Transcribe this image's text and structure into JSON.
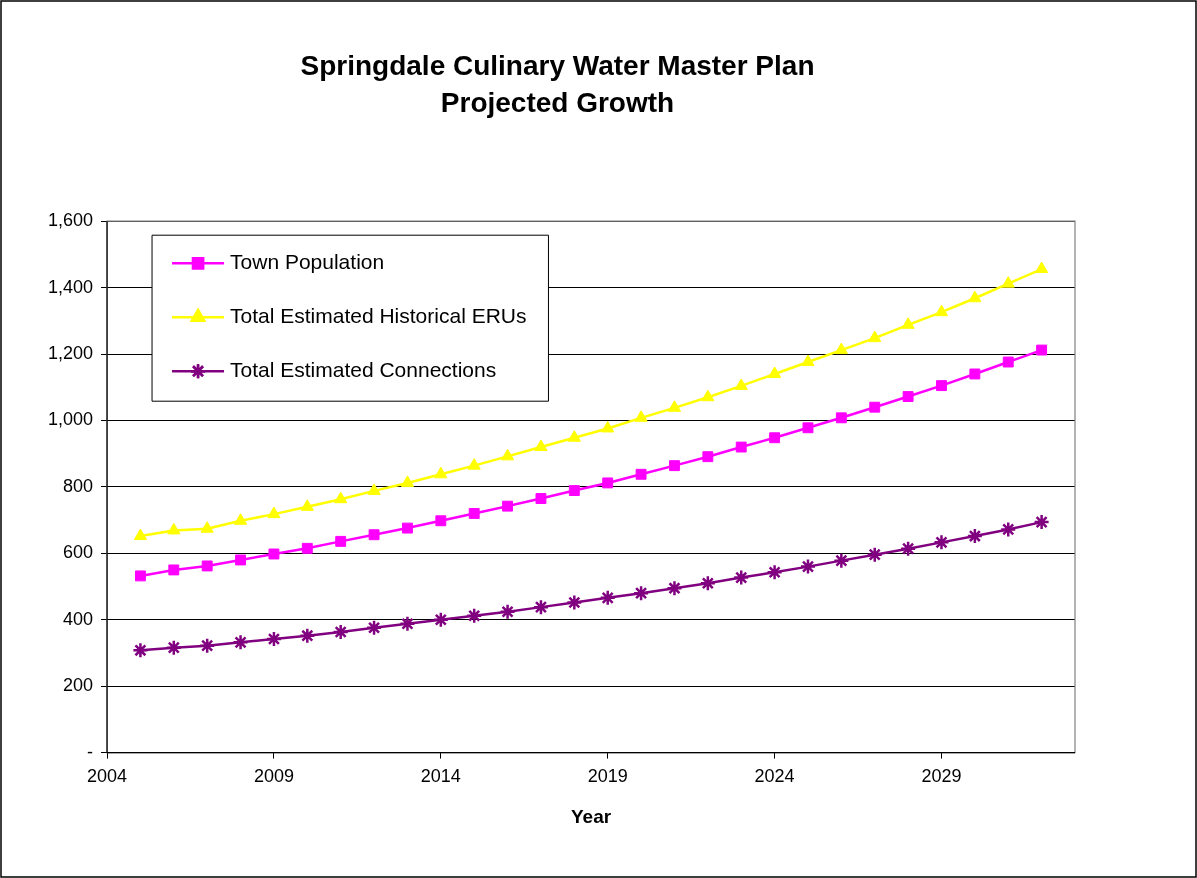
{
  "chart_data": {
    "type": "line",
    "title": "Springdale Culinary Water Master Plan",
    "subtitle": "Projected Growth",
    "xlabel": "Year",
    "x": [
      2005,
      2006,
      2007,
      2008,
      2009,
      2010,
      2011,
      2012,
      2013,
      2014,
      2015,
      2016,
      2017,
      2018,
      2019,
      2020,
      2021,
      2022,
      2023,
      2024,
      2025,
      2026,
      2027,
      2028,
      2029,
      2030,
      2031,
      2032
    ],
    "series": [
      {
        "name": "Town Population",
        "color": "#ff00ff",
        "marker": "square",
        "values": [
          532,
          550,
          562,
          580,
          598,
          615,
          636,
          656,
          676,
          698,
          720,
          742,
          765,
          789,
          812,
          838,
          864,
          891,
          920,
          948,
          978,
          1008,
          1040,
          1072,
          1105,
          1140,
          1176,
          1212
        ]
      },
      {
        "name": "Total Estimated Historical ERUs",
        "color": "#ffff00",
        "marker": "triangle",
        "values": [
          652,
          669,
          674,
          698,
          718,
          740,
          763,
          788,
          812,
          838,
          864,
          892,
          920,
          948,
          976,
          1008,
          1038,
          1070,
          1104,
          1140,
          1176,
          1212,
          1248,
          1288,
          1326,
          1368,
          1412,
          1456
        ]
      },
      {
        "name": "Total Estimated Connections",
        "color": "#800080",
        "marker": "cross",
        "values": [
          308,
          316,
          322,
          332,
          342,
          352,
          363,
          376,
          388,
          400,
          412,
          424,
          438,
          452,
          466,
          480,
          495,
          510,
          527,
          543,
          560,
          578,
          596,
          614,
          633,
          652,
          672,
          694
        ]
      }
    ],
    "xlim": [
      2004,
      2033
    ],
    "xticks": [
      2004,
      2009,
      2014,
      2019,
      2024,
      2029
    ],
    "ylim": [
      0,
      1600
    ],
    "yticks": [
      {
        "value": 0,
        "label": "-"
      },
      {
        "value": 200,
        "label": "200"
      },
      {
        "value": 400,
        "label": "400"
      },
      {
        "value": 600,
        "label": "600"
      },
      {
        "value": 800,
        "label": "800"
      },
      {
        "value": 1000,
        "label": "1,000"
      },
      {
        "value": 1200,
        "label": "1,200"
      },
      {
        "value": 1400,
        "label": "1,400"
      },
      {
        "value": 1600,
        "label": "1,600"
      }
    ],
    "grid": "y",
    "legend": "top left",
    "line_style": "solid"
  }
}
